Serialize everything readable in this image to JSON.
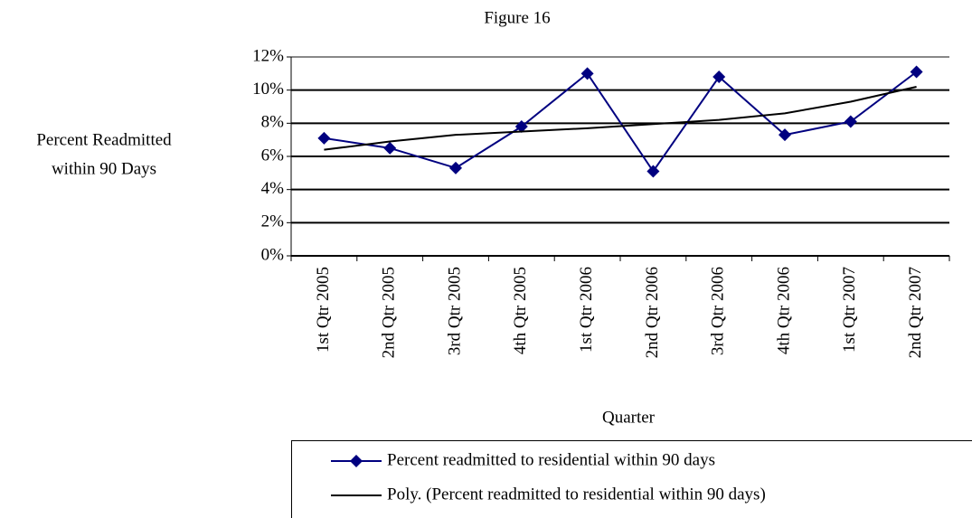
{
  "chart_data": {
    "type": "line",
    "title": "Figure 16",
    "ylabel": [
      "Percent Readmitted",
      "within 90 Days"
    ],
    "xlabel": "Quarter",
    "categories": [
      "1st Qtr 2005",
      "2nd Qtr 2005",
      "3rd Qtr 2005",
      "4th Qtr 2005",
      "1st Qtr 2006",
      "2nd Qtr 2006",
      "3rd Qtr 2006",
      "4th Qtr 2006",
      "1st Qtr 2007",
      "2nd Qtr 2007"
    ],
    "series": [
      {
        "name": "Percent readmitted to residential within 90 days",
        "color": "#000080",
        "marker": "diamond",
        "values": [
          7.1,
          6.5,
          5.3,
          7.8,
          11.0,
          5.1,
          10.8,
          7.3,
          8.1,
          11.1
        ]
      },
      {
        "name": "Poly. (Percent readmitted to residential within 90 days)",
        "color": "#000000",
        "marker": "none",
        "values": [
          6.4,
          6.9,
          7.3,
          7.5,
          7.7,
          7.95,
          8.2,
          8.6,
          9.3,
          10.2
        ]
      }
    ],
    "ylim": [
      0,
      12
    ],
    "yticks": [
      {
        "value": 0,
        "label": "0%"
      },
      {
        "value": 2,
        "label": "2%"
      },
      {
        "value": 4,
        "label": "4%"
      },
      {
        "value": 6,
        "label": "6%"
      },
      {
        "value": 8,
        "label": "8%"
      },
      {
        "value": 10,
        "label": "10%"
      },
      {
        "value": 12,
        "label": "12%"
      }
    ],
    "grid": true
  }
}
